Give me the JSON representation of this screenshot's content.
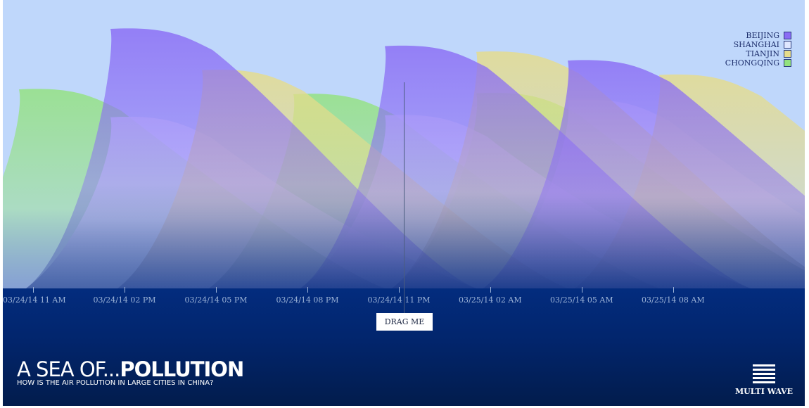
{
  "header": {
    "title_light": "A SEA OF...",
    "title_bold": "POLLUTION",
    "subtitle": "HOW IS THE AIR POLLUTION IN LARGE CITIES IN CHINA?"
  },
  "controls": {
    "drag_label": "DRAG ME",
    "multi_wave_label": "MULTI WAVE"
  },
  "colors": {
    "sky": "#bfd7fb",
    "sea_top": "#032c7e",
    "sea_bottom": "#021c4c"
  },
  "legend": [
    {
      "label": "BEIJING",
      "color": "#8a6cf5"
    },
    {
      "label": "SHANGHAI",
      "color": "#dfe7ff"
    },
    {
      "label": "TIANJIN",
      "color": "#e6dc8a"
    },
    {
      "label": "CHONGQING",
      "color": "#93e27e"
    }
  ],
  "axis": {
    "ticks": [
      "03/24/14 11 AM",
      "03/24/14 02 PM",
      "03/24/14 05 PM",
      "03/24/14 08 PM",
      "03/24/14 11 PM",
      "03/25/14 02 AM",
      "03/25/14 05 AM",
      "03/25/14 08 AM"
    ]
  },
  "chart_data": {
    "type": "area",
    "x": [
      "03/24/14 11 AM",
      "03/24/14 02 PM",
      "03/24/14 05 PM",
      "03/24/14 08 PM",
      "03/24/14 11 PM",
      "03/25/14 02 AM",
      "03/25/14 05 AM",
      "03/25/14 08 AM"
    ],
    "ylim": [
      0,
      300
    ],
    "series": [
      {
        "name": "BEIJING",
        "waves": [
          {
            "x": "03/24/14 02 PM",
            "value": 270
          },
          {
            "x": "03/24/14 11 PM",
            "value": 252
          },
          {
            "x": "03/25/14 05 AM",
            "value": 237
          }
        ]
      },
      {
        "name": "SHANGHAI",
        "waves": [
          {
            "x": "03/24/14 02 PM",
            "value": 178
          },
          {
            "x": "03/24/14 11 PM",
            "value": 180
          },
          {
            "x": "03/25/14 05 AM",
            "value": 196
          }
        ]
      },
      {
        "name": "TIANJIN",
        "waves": [
          {
            "x": "03/24/14 05 PM",
            "value": 227
          },
          {
            "x": "03/25/14 02 AM",
            "value": 246
          },
          {
            "x": "03/25/14 08 AM",
            "value": 222
          }
        ]
      },
      {
        "name": "CHONGQING",
        "waves": [
          {
            "x": "03/24/14 11 AM",
            "value": 207
          },
          {
            "x": "03/24/14 08 PM",
            "value": 202
          },
          {
            "x": "03/25/14 02 AM",
            "value": 203
          }
        ]
      }
    ]
  }
}
